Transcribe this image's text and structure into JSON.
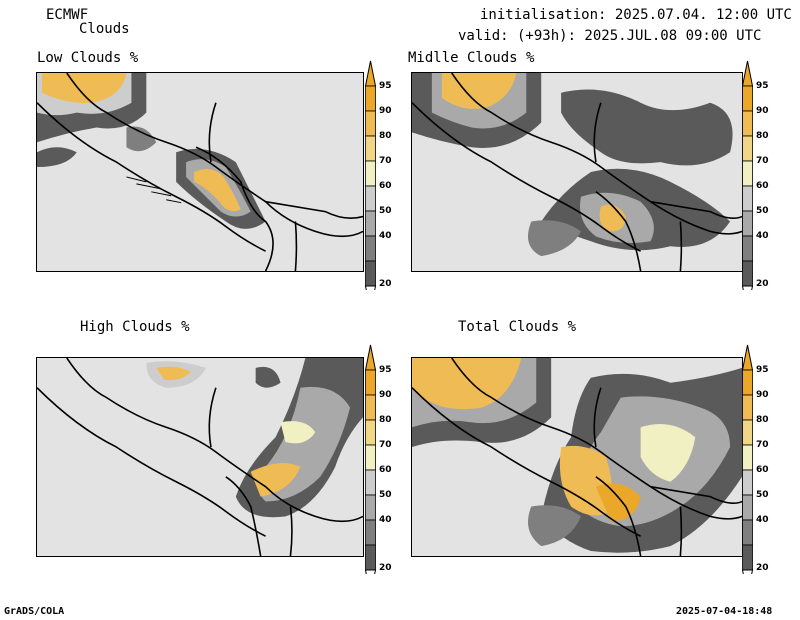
{
  "header": {
    "model": "ECMWF",
    "product": "Clouds",
    "init": "initialisation: 2025.07.04. 12:00 UTC",
    "valid": "valid: (+93h): 2025.JUL.08 09:00 UTC"
  },
  "panels": [
    {
      "id": "low",
      "title": "Low Clouds %"
    },
    {
      "id": "middle",
      "title": "Midlle Clouds %"
    },
    {
      "id": "high",
      "title": "High Clouds %"
    },
    {
      "id": "total",
      "title": "Total Clouds %"
    }
  ],
  "colorbar": {
    "levels": [
      "20",
      "40",
      "50",
      "60",
      "70",
      "80",
      "90",
      "95"
    ],
    "colors": [
      "#5a5a5a",
      "#7f7f7f",
      "#a9a9a9",
      "#cdcdcd",
      "#f1f0c2",
      "#f2d688",
      "#efbb55",
      "#eaa72a"
    ],
    "below_color": "#ffffff"
  },
  "footer": {
    "left": "GrADS/COLA",
    "right": "2025-07-04-18:48"
  }
}
